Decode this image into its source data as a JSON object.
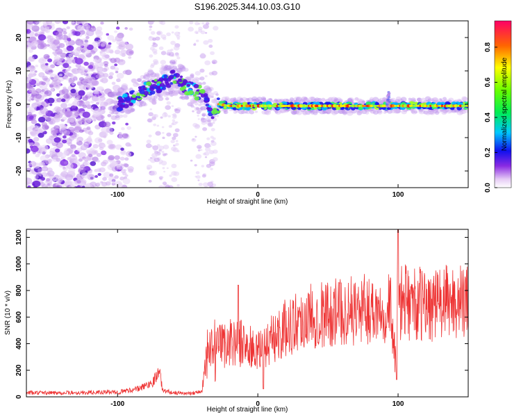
{
  "title": "S196.2025.344.10.03.G10",
  "chart_data": [
    {
      "type": "heatmap",
      "xlabel": "Height of straight line (km)",
      "ylabel": "Frequency (Hz)",
      "xlim": [
        -165,
        150
      ],
      "ylim": [
        -25,
        25
      ],
      "x_ticks": [
        -100,
        0,
        100
      ],
      "y_ticks": [
        -20,
        -10,
        0,
        10,
        20
      ],
      "trace": {
        "x": [
          -100,
          -90,
          -80,
          -70,
          -60,
          -50,
          -40,
          -32,
          -28,
          -20,
          0,
          50,
          100,
          150
        ],
        "y": [
          0,
          2,
          4.5,
          6,
          8,
          5,
          3,
          -3,
          0,
          -0.5,
          -0.5,
          -0.5,
          -0.5,
          -0.5
        ]
      },
      "colorbar": {
        "label": "Normalized spectral amplitude",
        "range": [
          0,
          0.95
        ],
        "ticks": [
          0.0,
          0.2,
          0.4,
          0.6,
          0.8
        ]
      }
    },
    {
      "type": "line",
      "xlabel": "Height of straight line (km)",
      "ylabel": "SNR (10 * v/v)",
      "xlim": [
        -165,
        150
      ],
      "ylim": [
        0,
        1260
      ],
      "x_ticks": [
        -100,
        0,
        100
      ],
      "y_ticks": [
        0,
        200,
        400,
        600,
        800,
        1000,
        1200
      ],
      "series": [
        {
          "name": "SNR",
          "color": "#ee3333",
          "x": [
            -165,
            -130,
            -100,
            -85,
            -75,
            -70,
            -68,
            -60,
            -50,
            -40,
            -36,
            -30,
            -20,
            -10,
            0,
            10,
            20,
            30,
            40,
            60,
            80,
            95,
            99,
            100,
            101,
            105,
            120,
            130,
            140,
            150
          ],
          "y": [
            30,
            30,
            35,
            60,
            110,
            200,
            50,
            30,
            25,
            40,
            300,
            350,
            420,
            400,
            330,
            430,
            520,
            580,
            620,
            640,
            660,
            680,
            130,
            1260,
            700,
            710,
            690,
            700,
            720,
            700
          ]
        }
      ]
    }
  ]
}
